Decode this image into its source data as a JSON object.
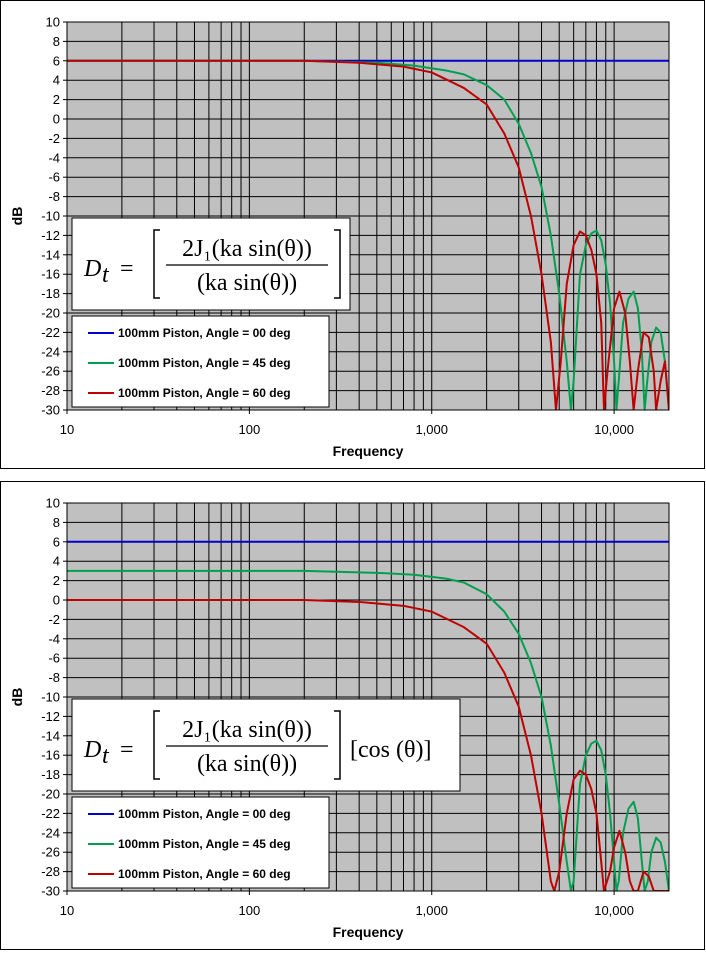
{
  "chart_data": [
    {
      "type": "line",
      "title": "",
      "xlabel": "Frequency",
      "ylabel": "dB",
      "x_scale": "log",
      "xlim": [
        10,
        20000
      ],
      "ylim": [
        -30,
        10
      ],
      "y_ticks": [
        "10",
        "8",
        "6",
        "4",
        "2",
        "0",
        "-2",
        "-4",
        "-6",
        "-8",
        "-10",
        "-12",
        "-14",
        "-16",
        "-18",
        "-20",
        "-22",
        "-24",
        "-26",
        "-28",
        "-30"
      ],
      "x_ticks": [
        {
          "value": 10,
          "label": "10"
        },
        {
          "value": 100,
          "label": "100"
        },
        {
          "value": 1000,
          "label": "1,000"
        },
        {
          "value": 10000,
          "label": "10,000"
        }
      ],
      "grid": true,
      "plot_background": "#c0c0c0",
      "legend_position": "bottom-left",
      "equation": {
        "lhs": "D",
        "sub": "t",
        "num": "2J₁(ka sin(θ))",
        "den": "(ka sin(θ))",
        "extra": ""
      },
      "series": [
        {
          "name": "100mm Piston, Angle = 00 deg",
          "color": "#0000cc",
          "points": [
            [
              10,
              6
            ],
            [
              20000,
              6
            ]
          ]
        },
        {
          "name": "100mm Piston, Angle = 45 deg",
          "color": "#00a050",
          "points": [
            [
              10,
              6
            ],
            [
              200,
              6
            ],
            [
              500,
              5.8
            ],
            [
              800,
              5.5
            ],
            [
              1200,
              5.0
            ],
            [
              1500,
              4.6
            ],
            [
              2000,
              3.5
            ],
            [
              2500,
              2.0
            ],
            [
              3000,
              -0.5
            ],
            [
              3500,
              -3.5
            ],
            [
              4000,
              -7
            ],
            [
              4500,
              -12
            ],
            [
              5000,
              -18
            ],
            [
              5500,
              -25
            ],
            [
              5800,
              -30
            ],
            [
              6000,
              -27
            ],
            [
              6500,
              -16
            ],
            [
              7000,
              -13
            ],
            [
              7500,
              -11.8
            ],
            [
              8000,
              -11.5
            ],
            [
              8500,
              -12.5
            ],
            [
              9000,
              -15
            ],
            [
              9500,
              -19
            ],
            [
              10000,
              -25
            ],
            [
              10300,
              -30
            ],
            [
              10600,
              -27
            ],
            [
              11200,
              -21
            ],
            [
              12000,
              -18.5
            ],
            [
              12800,
              -17.8
            ],
            [
              13500,
              -19.5
            ],
            [
              14200,
              -24
            ],
            [
              14700,
              -30
            ],
            [
              15200,
              -27
            ],
            [
              16000,
              -23
            ],
            [
              17000,
              -21.5
            ],
            [
              18000,
              -22
            ],
            [
              19000,
              -25
            ],
            [
              20000,
              -30
            ]
          ]
        },
        {
          "name": "100mm Piston, Angle = 60 deg",
          "color": "#c00000",
          "points": [
            [
              10,
              6
            ],
            [
              200,
              6
            ],
            [
              400,
              5.8
            ],
            [
              700,
              5.4
            ],
            [
              1000,
              4.8
            ],
            [
              1500,
              3.2
            ],
            [
              2000,
              1.5
            ],
            [
              2500,
              -1.5
            ],
            [
              3000,
              -5
            ],
            [
              3500,
              -10
            ],
            [
              4000,
              -16
            ],
            [
              4500,
              -23
            ],
            [
              4800,
              -30
            ],
            [
              5100,
              -25
            ],
            [
              5500,
              -17
            ],
            [
              6000,
              -13
            ],
            [
              6500,
              -11.6
            ],
            [
              7000,
              -12
            ],
            [
              7500,
              -13.5
            ],
            [
              8000,
              -16
            ],
            [
              8500,
              -21
            ],
            [
              8800,
              -30
            ],
            [
              9200,
              -26
            ],
            [
              10000,
              -19.5
            ],
            [
              10700,
              -17.8
            ],
            [
              11500,
              -20
            ],
            [
              12200,
              -25
            ],
            [
              12800,
              -30
            ],
            [
              13500,
              -26
            ],
            [
              14500,
              -22
            ],
            [
              15500,
              -22.5
            ],
            [
              16500,
              -26
            ],
            [
              17000,
              -30
            ],
            [
              18000,
              -27
            ],
            [
              19000,
              -25
            ],
            [
              20000,
              -30
            ]
          ]
        }
      ]
    },
    {
      "type": "line",
      "title": "",
      "xlabel": "Frequency",
      "ylabel": "dB",
      "x_scale": "log",
      "xlim": [
        10,
        20000
      ],
      "ylim": [
        -30,
        10
      ],
      "y_ticks": [
        "10",
        "8",
        "6",
        "4",
        "2",
        "0",
        "-2",
        "-4",
        "-6",
        "-8",
        "-10",
        "-12",
        "-14",
        "-16",
        "-18",
        "-20",
        "-22",
        "-24",
        "-26",
        "-28",
        "-30"
      ],
      "x_ticks": [
        {
          "value": 10,
          "label": "10"
        },
        {
          "value": 100,
          "label": "100"
        },
        {
          "value": 1000,
          "label": "1,000"
        },
        {
          "value": 10000,
          "label": "10,000"
        }
      ],
      "grid": true,
      "plot_background": "#c0c0c0",
      "legend_position": "bottom-left",
      "equation": {
        "lhs": "D",
        "sub": "t",
        "num": "2J₁(ka sin(θ))",
        "den": "(ka sin(θ))",
        "extra": "[cos (θ)]"
      },
      "series": [
        {
          "name": "100mm Piston, Angle = 00 deg",
          "color": "#0000cc",
          "points": [
            [
              10,
              6
            ],
            [
              20000,
              6
            ]
          ]
        },
        {
          "name": "100mm Piston, Angle = 45 deg",
          "color": "#00a050",
          "points": [
            [
              10,
              3
            ],
            [
              200,
              3
            ],
            [
              500,
              2.8
            ],
            [
              800,
              2.6
            ],
            [
              1200,
              2.2
            ],
            [
              1500,
              1.8
            ],
            [
              2000,
              0.6
            ],
            [
              2500,
              -1.2
            ],
            [
              3000,
              -3.5
            ],
            [
              3500,
              -6.5
            ],
            [
              4000,
              -10
            ],
            [
              4500,
              -15
            ],
            [
              5000,
              -21
            ],
            [
              5500,
              -27
            ],
            [
              5800,
              -30
            ],
            [
              6000,
              -29
            ],
            [
              6500,
              -19
            ],
            [
              7000,
              -16
            ],
            [
              7500,
              -14.8
            ],
            [
              8000,
              -14.5
            ],
            [
              8500,
              -15.5
            ],
            [
              9000,
              -18
            ],
            [
              9500,
              -22
            ],
            [
              10000,
              -27
            ],
            [
              10300,
              -30
            ],
            [
              10600,
              -29
            ],
            [
              11200,
              -24
            ],
            [
              12000,
              -21.5
            ],
            [
              12800,
              -20.8
            ],
            [
              13500,
              -22.5
            ],
            [
              14200,
              -27
            ],
            [
              14700,
              -30
            ],
            [
              15300,
              -29
            ],
            [
              16000,
              -26
            ],
            [
              17000,
              -24.5
            ],
            [
              18000,
              -25
            ],
            [
              19000,
              -27
            ],
            [
              20000,
              -30
            ]
          ]
        },
        {
          "name": "100mm Piston, Angle = 60 deg",
          "color": "#c00000",
          "points": [
            [
              10,
              0
            ],
            [
              200,
              0
            ],
            [
              400,
              -0.2
            ],
            [
              700,
              -0.6
            ],
            [
              1000,
              -1.2
            ],
            [
              1500,
              -2.8
            ],
            [
              2000,
              -4.5
            ],
            [
              2500,
              -7.5
            ],
            [
              3000,
              -11
            ],
            [
              3500,
              -16
            ],
            [
              4000,
              -22
            ],
            [
              4500,
              -29
            ],
            [
              4700,
              -30
            ],
            [
              5000,
              -28
            ],
            [
              5500,
              -22
            ],
            [
              6000,
              -18.5
            ],
            [
              6500,
              -17.6
            ],
            [
              7000,
              -18
            ],
            [
              7500,
              -19.5
            ],
            [
              8000,
              -22
            ],
            [
              8500,
              -27
            ],
            [
              8800,
              -30
            ],
            [
              9500,
              -28
            ],
            [
              10000,
              -25.5
            ],
            [
              10700,
              -23.8
            ],
            [
              11500,
              -26
            ],
            [
              12200,
              -29
            ],
            [
              12800,
              -30
            ],
            [
              13500,
              -30
            ],
            [
              14500,
              -28
            ],
            [
              15500,
              -28.5
            ],
            [
              16500,
              -30
            ],
            [
              20000,
              -30
            ]
          ]
        }
      ]
    }
  ]
}
